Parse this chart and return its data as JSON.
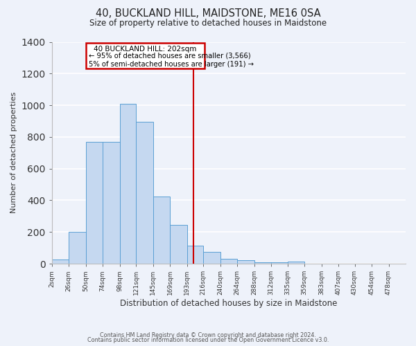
{
  "title": "40, BUCKLAND HILL, MAIDSTONE, ME16 0SA",
  "subtitle": "Size of property relative to detached houses in Maidstone",
  "xlabel": "Distribution of detached houses by size in Maidstone",
  "ylabel": "Number of detached properties",
  "bin_labels": [
    "2sqm",
    "26sqm",
    "50sqm",
    "74sqm",
    "98sqm",
    "121sqm",
    "145sqm",
    "169sqm",
    "193sqm",
    "216sqm",
    "240sqm",
    "264sqm",
    "288sqm",
    "312sqm",
    "335sqm",
    "359sqm",
    "383sqm",
    "407sqm",
    "430sqm",
    "454sqm",
    "478sqm"
  ],
  "bin_edges": [
    2,
    26,
    50,
    74,
    98,
    121,
    145,
    169,
    193,
    216,
    240,
    264,
    288,
    312,
    335,
    359,
    383,
    407,
    430,
    454,
    478
  ],
  "bar_values": [
    25,
    200,
    770,
    770,
    1010,
    895,
    425,
    245,
    115,
    75,
    30,
    22,
    10,
    8,
    15,
    0,
    0,
    0,
    0,
    0
  ],
  "bar_color": "#c5d8f0",
  "bar_edge_color": "#5a9fd4",
  "vline_x": 202,
  "vline_color": "#cc0000",
  "annotation_title": "40 BUCKLAND HILL: 202sqm",
  "annotation_line1": "← 95% of detached houses are smaller (3,566)",
  "annotation_line2": "5% of semi-detached houses are larger (191) →",
  "annotation_box_color": "#cc0000",
  "ylim": [
    0,
    1400
  ],
  "yticks": [
    0,
    200,
    400,
    600,
    800,
    1000,
    1200,
    1400
  ],
  "background_color": "#eef2fa",
  "grid_color": "#ffffff",
  "footer1": "Contains HM Land Registry data © Crown copyright and database right 2024.",
  "footer2": "Contains public sector information licensed under the Open Government Licence v3.0."
}
